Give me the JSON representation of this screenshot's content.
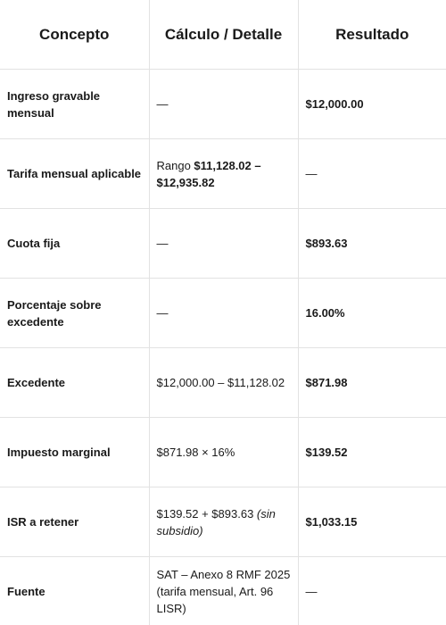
{
  "headers": {
    "concepto": "Concepto",
    "calculo": "Cálculo / Detalle",
    "resultado": "Resultado"
  },
  "rows": [
    {
      "concepto": "Ingreso gravable mensual",
      "calculo": "—",
      "resultado": "$12,000.00"
    },
    {
      "concepto": "Tarifa mensual aplicable",
      "calculo_prefix": "Rango ",
      "calculo_bold": "$11,128.02 – $12,935.82",
      "resultado": "—"
    },
    {
      "concepto": "Cuota fija",
      "calculo": "—",
      "resultado": "$893.63"
    },
    {
      "concepto": "Porcentaje sobre excedente",
      "calculo": "—",
      "resultado": "16.00%"
    },
    {
      "concepto": "Excedente",
      "calculo": "$12,000.00 – $11,128.02",
      "resultado": "$871.98"
    },
    {
      "concepto": "Impuesto marginal",
      "calculo": "$871.98 × 16%",
      "resultado": "$139.52"
    },
    {
      "concepto": "ISR a retener",
      "calculo_prefix": "$139.52 + $893.63 ",
      "calculo_italic": "(sin subsidio)",
      "resultado": "$1,033.15"
    },
    {
      "concepto": "Fuente",
      "calculo": "SAT – Anexo 8 RMF 2025 (tarifa mensual, Art. 96 LISR)",
      "resultado": "—"
    }
  ]
}
